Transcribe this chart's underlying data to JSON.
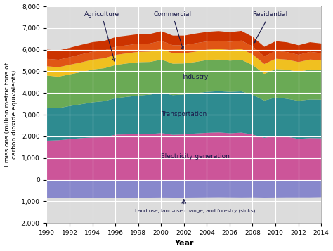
{
  "years": [
    1990,
    1991,
    1992,
    1993,
    1994,
    1995,
    1996,
    1997,
    1998,
    1999,
    2000,
    2001,
    2002,
    2003,
    2004,
    2005,
    2006,
    2007,
    2008,
    2009,
    2010,
    2011,
    2012,
    2013,
    2014
  ],
  "land_use": [
    -820,
    -825,
    -830,
    -830,
    -825,
    -820,
    -825,
    -820,
    -815,
    -810,
    -805,
    -810,
    -810,
    -805,
    -800,
    -795,
    -800,
    -805,
    -800,
    -810,
    -805,
    -800,
    -800,
    -800,
    -790
  ],
  "electricity": [
    1820,
    1840,
    1890,
    1940,
    1970,
    1980,
    2100,
    2110,
    2120,
    2120,
    2170,
    2090,
    2110,
    2150,
    2180,
    2200,
    2160,
    2190,
    2100,
    1950,
    2050,
    2000,
    1900,
    1940,
    1930
  ],
  "transportation": [
    1490,
    1480,
    1530,
    1560,
    1620,
    1660,
    1680,
    1730,
    1780,
    1820,
    1860,
    1830,
    1840,
    1860,
    1890,
    1900,
    1910,
    1900,
    1830,
    1720,
    1760,
    1750,
    1760,
    1780,
    1780
  ],
  "industry": [
    1510,
    1450,
    1460,
    1480,
    1510,
    1520,
    1530,
    1540,
    1540,
    1510,
    1530,
    1450,
    1430,
    1440,
    1470,
    1460,
    1440,
    1460,
    1370,
    1230,
    1310,
    1340,
    1330,
    1380,
    1360
  ],
  "commercial": [
    430,
    435,
    440,
    450,
    455,
    460,
    465,
    470,
    475,
    480,
    490,
    480,
    470,
    475,
    480,
    490,
    495,
    500,
    490,
    455,
    475,
    465,
    455,
    460,
    455
  ],
  "residential": [
    340,
    345,
    350,
    370,
    365,
    360,
    380,
    370,
    375,
    370,
    370,
    370,
    370,
    390,
    375,
    380,
    375,
    385,
    370,
    350,
    365,
    350,
    330,
    355,
    330
  ],
  "agriculture": [
    430,
    430,
    435,
    440,
    445,
    440,
    445,
    445,
    445,
    440,
    450,
    445,
    445,
    445,
    445,
    445,
    445,
    450,
    445,
    445,
    450,
    450,
    445,
    445,
    445
  ],
  "colors": {
    "land_use": "#8888cc",
    "electricity": "#cc5599",
    "transportation": "#2e8b90",
    "industry": "#6aaa55",
    "commercial": "#f0c020",
    "residential": "#e05515",
    "agriculture": "#cc3300"
  },
  "xlabel": "Year",
  "ylabel": "Emissions (million metric tons of\ncarbon dioxide equivalents)",
  "ylim": [
    -2000,
    8000
  ],
  "yticks": [
    -2000,
    -1000,
    0,
    1000,
    2000,
    3000,
    4000,
    5000,
    6000,
    7000,
    8000
  ],
  "xticks": [
    1990,
    1992,
    1994,
    1996,
    1998,
    2000,
    2002,
    2004,
    2006,
    2008,
    2010,
    2012,
    2014
  ],
  "bg_color": "#dcdcdc",
  "fig_color": "#ffffff",
  "grid_color": "#ffffff"
}
